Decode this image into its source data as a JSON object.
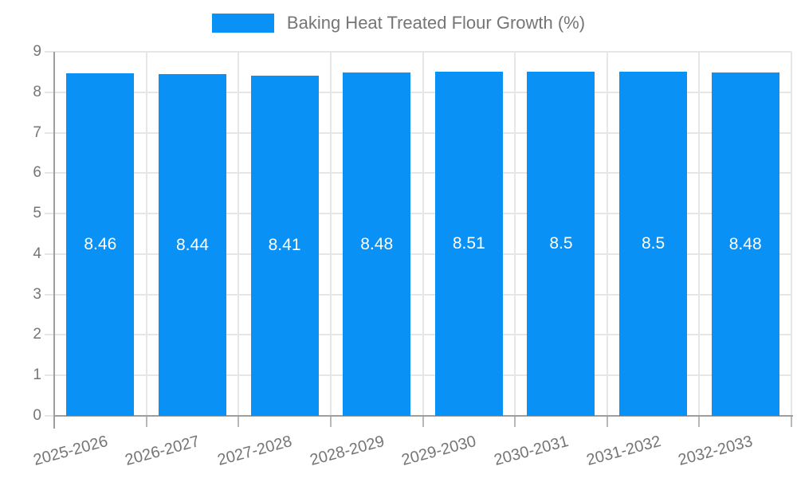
{
  "chart_data": {
    "type": "bar",
    "title": "",
    "legend": "Baking Heat Treated Flour Growth (%)",
    "legend_position": "top-center",
    "categories": [
      "2025-2026",
      "2026-2027",
      "2027-2028",
      "2028-2029",
      "2029-2030",
      "2030-2031",
      "2031-2032",
      "2032-2033"
    ],
    "series": [
      {
        "name": "Baking Heat Treated Flour Growth (%)",
        "values": [
          8.46,
          8.44,
          8.41,
          8.48,
          8.51,
          8.5,
          8.5,
          8.48
        ],
        "value_labels": [
          "8.46",
          "8.44",
          "8.41",
          "8.48",
          "8.51",
          "8.5",
          "8.5",
          "8.48"
        ]
      }
    ],
    "xlabel": "",
    "ylabel": "",
    "ylim": [
      0,
      9
    ],
    "yticks": [
      0,
      1,
      2,
      3,
      4,
      5,
      6,
      7,
      8,
      9
    ],
    "grid": true,
    "bar_color": "#0991f5",
    "value_label_color": "#ffffff",
    "axis_text_color": "#757575",
    "grid_color": "#e6e6e6",
    "axis_line_color": "#9e9e9e"
  }
}
